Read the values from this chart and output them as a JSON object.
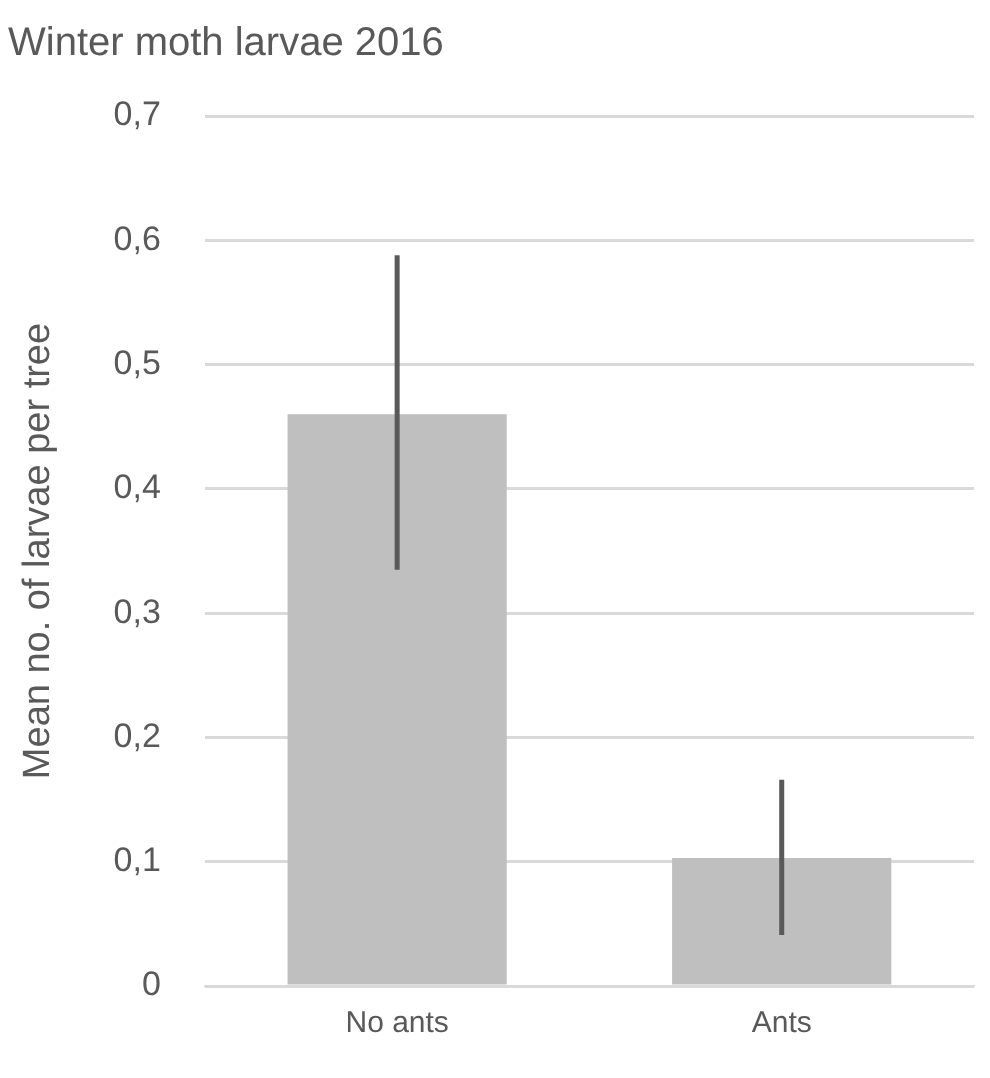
{
  "chart_data": {
    "type": "bar",
    "title": "Winter moth larvae 2016",
    "ylabel": "Mean no. of larvae per tree",
    "categories": [
      "No ants",
      "Ants"
    ],
    "values": [
      0.46,
      0.103
    ],
    "color": "#bfbfbf",
    "errors": [
      [
        0.335,
        0.588
      ],
      [
        0.041,
        0.166
      ]
    ],
    "ylim": [
      0,
      0.7
    ],
    "yticks": [
      0,
      {
        "value": 0.1,
        "label": "0,1"
      },
      {
        "value": 0.2,
        "label": "0,2"
      },
      {
        "value": 0.3,
        "label": "0,3"
      },
      {
        "value": 0.4,
        "label": "0,4"
      },
      {
        "value": 0.5,
        "label": "0,5"
      },
      {
        "value": 0.6,
        "label": "0,6"
      },
      {
        "value": 0.7,
        "label": "0,7"
      }
    ],
    "grid": "y",
    "legend": false
  }
}
